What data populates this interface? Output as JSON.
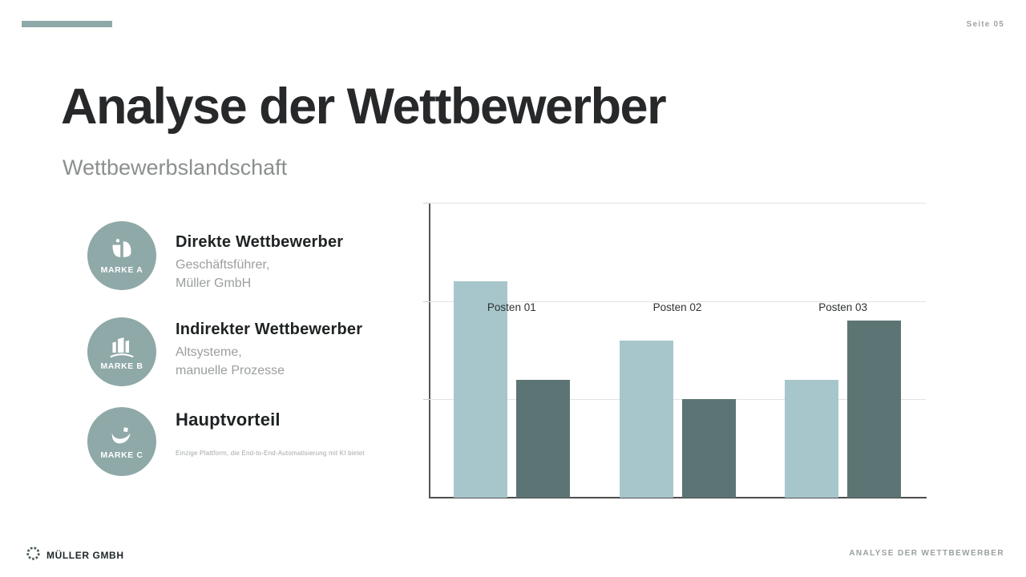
{
  "page": {
    "number_label": "Seite 05"
  },
  "header": {
    "title": "Analyse der Wettbewerber",
    "subtitle": "Wettbewerbslandschaft"
  },
  "items": [
    {
      "badge": "MARKE A",
      "icon": "plant-icon",
      "heading": "Direkte Wettbewerber",
      "lines": [
        "Geschäftsführer,",
        "Müller GmbH"
      ]
    },
    {
      "badge": "MARKE B",
      "icon": "buildings-icon",
      "heading": "Indirekter Wettbewerber",
      "lines": [
        "Altsysteme,",
        "manuelle Prozesse"
      ]
    },
    {
      "badge": "MARKE C",
      "icon": "bird-icon",
      "heading": "Hauptvorteil",
      "lines": [
        "Einzige Plattform, die End-to-End-Automatisierung mit KI bietet"
      ]
    }
  ],
  "chart_data": {
    "type": "bar",
    "categories": [
      "Posten 01",
      "Posten 02",
      "Posten 03"
    ],
    "series": [
      {
        "name": "series-1",
        "color": "#a7c6cc",
        "values": [
          110,
          80,
          60
        ]
      },
      {
        "name": "series-2",
        "color": "#5c7473",
        "values": [
          60,
          50,
          90
        ]
      }
    ],
    "title": "",
    "xlabel": "",
    "ylabel": "",
    "ylim": [
      0,
      150
    ],
    "yticks": [
      0,
      50,
      100,
      150
    ],
    "grid": true,
    "legend": false
  },
  "colors": {
    "accent": "#8fa8a8",
    "badge_background": "#8fa8a8",
    "bar_light": "#a7c6cc",
    "bar_dark": "#5c7473"
  },
  "footer": {
    "brand": "MÜLLER GMBH",
    "right_text": "ANALYSE DER WETTBEWERBER"
  }
}
